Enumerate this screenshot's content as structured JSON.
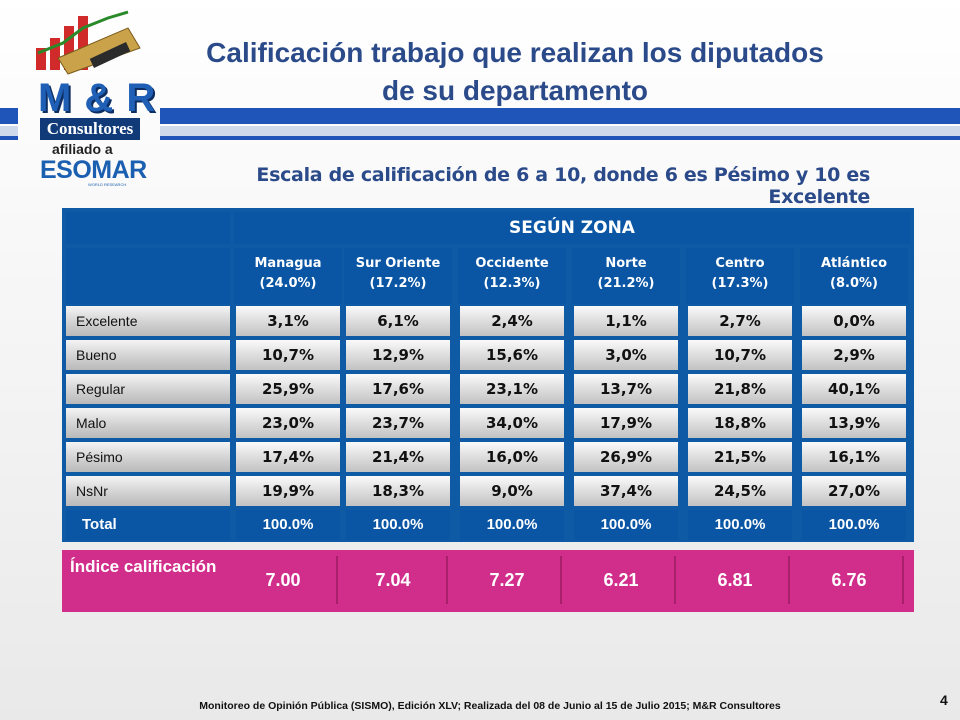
{
  "title": "Calificación trabajo que realizan los diputados de su departamento",
  "subtitle": "Escala de calificación de 6 a 10, donde 6 es Pésimo y 10 es Excelente",
  "brand": {
    "mr": "M & R",
    "consultores": "Consultores",
    "afiliado": "afiliado a",
    "esomar": "ESOMAR",
    "world": "WORLD RESEARCH"
  },
  "table": {
    "group_header": "SEGÚN ZONA",
    "columns": [
      {
        "name": "Managua",
        "pct": "(24.0%)"
      },
      {
        "name": "Sur Oriente",
        "pct": "(17.2%)"
      },
      {
        "name": "Occidente",
        "pct": "(12.3%)"
      },
      {
        "name": "Norte",
        "pct": "(21.2%)"
      },
      {
        "name": "Centro",
        "pct": "(17.3%)"
      },
      {
        "name": "Atlántico",
        "pct": "(8.0%)"
      }
    ],
    "rows": [
      {
        "label": "Excelente",
        "values": [
          "3,1%",
          "6,1%",
          "2,4%",
          "1,1%",
          "2,7%",
          "0,0%"
        ]
      },
      {
        "label": "Bueno",
        "values": [
          "10,7%",
          "12,9%",
          "15,6%",
          "3,0%",
          "10,7%",
          "2,9%"
        ]
      },
      {
        "label": "Regular",
        "values": [
          "25,9%",
          "17,6%",
          "23,1%",
          "13,7%",
          "21,8%",
          "40,1%"
        ]
      },
      {
        "label": "Malo",
        "values": [
          "23,0%",
          "23,7%",
          "34,0%",
          "17,9%",
          "18,8%",
          "13,9%"
        ]
      },
      {
        "label": "Pésimo",
        "values": [
          "17,4%",
          "21,4%",
          "16,0%",
          "26,9%",
          "21,5%",
          "16,1%"
        ]
      },
      {
        "label": "NsNr",
        "values": [
          "19,9%",
          "18,3%",
          "9,0%",
          "37,4%",
          "24,5%",
          "27,0%"
        ]
      }
    ],
    "total": {
      "label": "Total",
      "values": [
        "100.0%",
        "100.0%",
        "100.0%",
        "100.0%",
        "100.0%",
        "100.0%"
      ]
    }
  },
  "index": {
    "label": "Índice calificación",
    "values": [
      "7.00",
      "7.04",
      "7.27",
      "6.21",
      "6.81",
      "6.76"
    ]
  },
  "footer": "Monitoreo de Opinión Pública (SISMO), Edición XLV; Realizada del 08 de Junio al 15 de Julio 2015; M&R Consultores",
  "page_number": "4",
  "colors": {
    "table_blue": "#0a56a4",
    "index_pink": "#d12e8c",
    "title": "#2b4a8a",
    "band": "#1f55b8"
  }
}
